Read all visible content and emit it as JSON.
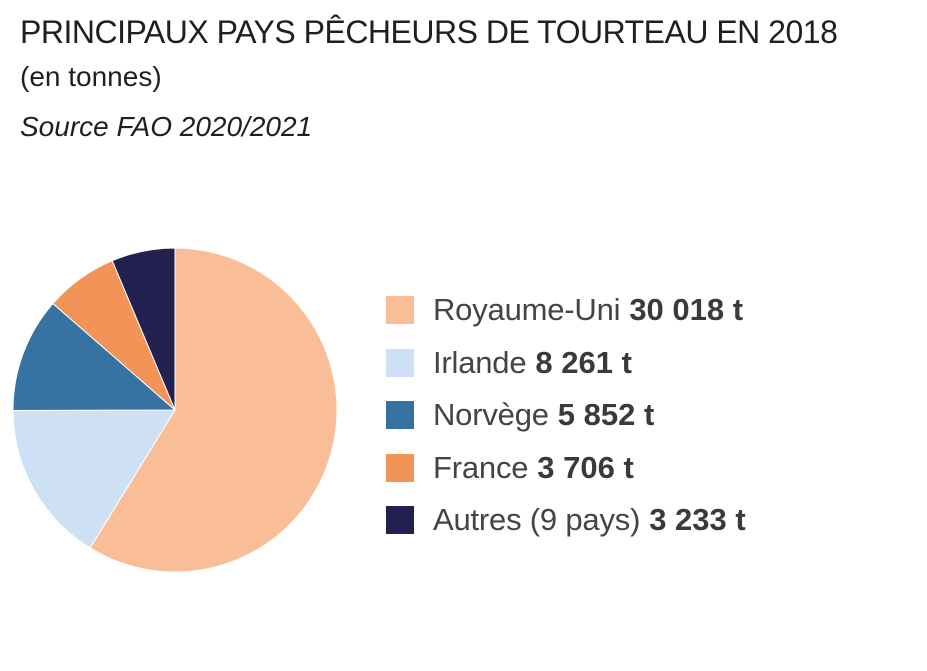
{
  "title": "PRINCIPAUX PAYS PÊCHEURS DE TOURTEAU EN 2018",
  "subtitle": "(en tonnes)",
  "source": "Source FAO 2020/2021",
  "chart_data": {
    "type": "pie",
    "title": "PRINCIPAUX PAYS PÊCHEURS DE TOURTEAU EN 2018",
    "subtitle": "(en tonnes)",
    "unit": "t",
    "legend_position": "right",
    "slices": [
      {
        "label": "Royaume-Uni",
        "value": 30018,
        "value_label": "30 018 t",
        "color": "#f9be98"
      },
      {
        "label": "Irlande",
        "value": 8261,
        "value_label": "8 261 t",
        "color": "#cde0f4"
      },
      {
        "label": "Norvège",
        "value": 5852,
        "value_label": "5 852 t",
        "color": "#3672a2"
      },
      {
        "label": "France",
        "value": 3706,
        "value_label": "3 706 t",
        "color": "#f29458"
      },
      {
        "label": "Autres (9 pays)",
        "value": 3233,
        "value_label": "3 233 t",
        "color": "#232150"
      }
    ]
  }
}
